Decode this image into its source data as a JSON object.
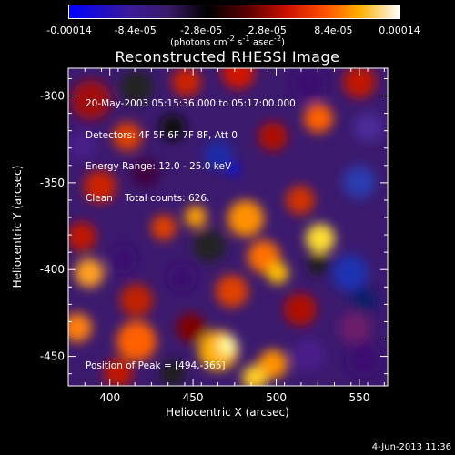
{
  "colorbar": {
    "tick_labels": [
      "-0.00014",
      "-8.4e-05",
      "-2.8e-05",
      "2.8e-05",
      "8.4e-05",
      "0.00014"
    ],
    "units_html": "(photons cm<sup>-2</sup> s<sup>-1</sup> asec<sup>-2</sup>)"
  },
  "chart_data": {
    "type": "heatmap",
    "title": "Reconstructed RHESSI Image",
    "xlabel": "Heliocentric X (arcsec)",
    "ylabel": "Heliocentric Y (arcsec)",
    "xlim": [
      375,
      567
    ],
    "ylim": [
      -467,
      -284
    ],
    "x_ticks": [
      400,
      450,
      500,
      550
    ],
    "y_ticks": [
      -300,
      -350,
      -400,
      -450
    ],
    "value_range": [
      -0.00014,
      0.00014
    ],
    "colormap": "blue-purple-black-red-orange-yellow-white",
    "peak": [
      494,
      -365
    ]
  },
  "annotations": {
    "lines": [
      "20-May-2003 05:15:36.000 to 05:17:00.000",
      "Detectors: 4F 5F 6F 7F 8F, Att 0",
      "Energy Range: 12.0 - 25.0 keV",
      "Clean    Total counts: 626."
    ],
    "peak_text": "Position of Peak = [494,-365]"
  },
  "footer": {
    "date": "4-Jun-2013 11:36"
  }
}
